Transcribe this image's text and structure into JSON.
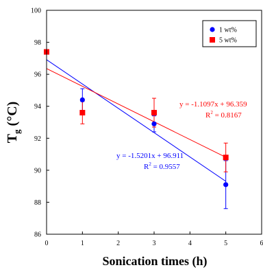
{
  "chart_data": {
    "type": "scatter",
    "xlabel": "Sonication times (h)",
    "ylabel": {
      "main": "T",
      "sub": "g",
      "unit": " (°C)"
    },
    "xlim": [
      0,
      6
    ],
    "ylim": [
      86,
      100
    ],
    "xticks": [
      "0",
      "1",
      "2",
      "3",
      "4",
      "5",
      "6"
    ],
    "yticks": [
      "86",
      "88",
      "90",
      "92",
      "94",
      "96",
      "98",
      "100"
    ],
    "legend_position": "top-right",
    "series": [
      {
        "name": "1 wt%",
        "color": "#0000ff",
        "marker": "circle",
        "x": [
          1,
          3,
          5
        ],
        "y": [
          94.4,
          92.9,
          89.1
        ],
        "err": [
          0.7,
          0.5,
          1.5
        ],
        "fit": {
          "slope": -1.5201,
          "intercept": 96.911
        },
        "equation": "y = -1.5201x + 96.911",
        "r2": {
          "prefix": "R",
          "sup": "2",
          "value": " = 0.9557"
        }
      },
      {
        "name": "5 wt%",
        "color": "#ff0000",
        "marker": "square",
        "x": [
          0,
          1,
          3,
          5
        ],
        "y": [
          97.4,
          93.6,
          93.6,
          90.8
        ],
        "err": [
          0,
          0.7,
          0.9,
          0.9
        ],
        "fit": {
          "slope": -1.1097,
          "intercept": 96.359
        },
        "equation": "y = -1.1097x + 96.359",
        "r2": {
          "prefix": "R",
          "sup": "2",
          "value": " = 0.8167"
        }
      }
    ]
  }
}
